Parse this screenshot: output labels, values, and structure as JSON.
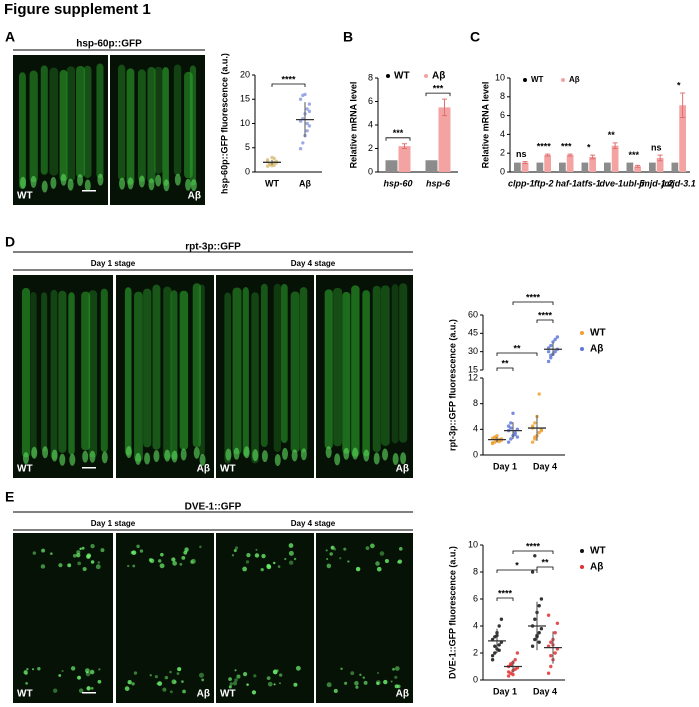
{
  "figure_title": "Figure supplement 1",
  "panel_labels": [
    "A",
    "B",
    "C",
    "D",
    "E"
  ],
  "images": {
    "A": {
      "title": "hsp-60p::GFP",
      "labels": [
        "WT",
        "Aβ"
      ]
    },
    "D": {
      "title": "rpt-3p::GFP",
      "stages": [
        "Day 1 stage",
        "Day 4  stage"
      ],
      "labels": [
        "WT",
        "Aβ",
        "WT",
        "Aβ"
      ]
    },
    "E": {
      "title": "DVE-1::GFP",
      "stages": [
        "Day 1 stage",
        "Day 4  stage"
      ],
      "labels": [
        "WT",
        "Aβ",
        "WT",
        "Aβ"
      ]
    }
  },
  "chart_data": [
    {
      "type": "dot",
      "ylabel": "hsp-60p::GFP fluorescence (a.u.)",
      "categories": [
        "WT",
        "Aβ"
      ],
      "colors": [
        "#d9bf7a",
        "#8d9de0"
      ],
      "values": [
        2.0,
        10.8
      ],
      "errors": [
        0.5,
        3.6
      ],
      "points": [
        [
          1.2,
          1.5,
          1.8,
          2.0,
          2.2,
          2.5,
          1.7,
          1.3,
          2.8,
          1.9,
          2.1,
          1.6,
          3.0,
          1.4
        ],
        [
          4.8,
          6.0,
          7.5,
          8.5,
          9.5,
          10.5,
          11,
          12,
          13,
          14,
          15,
          15.8,
          16,
          10,
          12.5
        ]
      ],
      "ylim": [
        0,
        20
      ],
      "yticks": [
        0,
        5,
        10,
        15,
        20
      ],
      "annotations": [
        "****"
      ]
    },
    {
      "type": "bar",
      "ylabel": "Relative mRNA level",
      "categories": [
        "hsp-60",
        "hsp-6"
      ],
      "series": [
        {
          "name": "WT",
          "color": "#8c8c8c",
          "values": [
            1,
            1
          ]
        },
        {
          "name": "Aβ",
          "color": "#f4a3a3",
          "values": [
            2.2,
            5.5
          ],
          "errors": [
            0.2,
            0.7
          ]
        }
      ],
      "significance": [
        "***",
        "***"
      ],
      "ylim": [
        0,
        8
      ],
      "yticks": [
        0,
        2,
        4,
        6,
        8
      ]
    },
    {
      "type": "bar",
      "ylabel": "Relative mRNA level",
      "categories": [
        "clpp-1",
        "ftp-2",
        "haf-1",
        "atfs-1",
        "dve-1",
        "ubl-5",
        "jmjd-1.2",
        "jmjd-3.1"
      ],
      "series": [
        {
          "name": "WT",
          "color": "#8c8c8c",
          "values": [
            1,
            1,
            1,
            1,
            1,
            1,
            1,
            1
          ]
        },
        {
          "name": "Aβ",
          "color": "#f4a3a3",
          "values": [
            1.0,
            1.8,
            1.8,
            1.6,
            2.8,
            0.6,
            1.5,
            7.1
          ],
          "errors": [
            0.1,
            0.1,
            0.1,
            0.2,
            0.3,
            0.1,
            0.3,
            1.3
          ]
        }
      ],
      "significance": [
        "ns",
        "****",
        "***",
        "*",
        "**",
        "***",
        "ns",
        "*"
      ],
      "ylim": [
        0,
        10
      ],
      "yticks": [
        0,
        2,
        4,
        6,
        8,
        10
      ]
    },
    {
      "type": "dot",
      "ylabel": "rpt-3p::GFP fluorescence (a.u.)",
      "categories": [
        "Day 1",
        "Day 4"
      ],
      "series": [
        {
          "name": "WT",
          "color": "#f0a030",
          "values": [
            2.4,
            4.2
          ],
          "errors": [
            0.4,
            2.0
          ],
          "points": [
            [
              1.8,
              2,
              2.2,
              2.4,
              2.5,
              2.6,
              2.8,
              3,
              2.1,
              2.3,
              1.9,
              2.7
            ],
            [
              2,
              2.5,
              3,
              3.5,
              4,
              4.5,
              5,
              6,
              9.5,
              3.8,
              4.2,
              2.8
            ]
          ]
        },
        {
          "name": "Aβ",
          "color": "#5f78d8",
          "values": [
            3.8,
            32
          ],
          "errors": [
            1.3,
            5.5
          ],
          "points": [
            [
              2,
              2.5,
              3,
              3.5,
              4,
              4.5,
              5,
              6.5,
              3.2,
              2.8,
              3.8,
              4.2
            ],
            [
              22,
              25,
              28,
              30,
              32,
              33,
              35,
              38,
              40,
              42,
              30,
              27
            ]
          ]
        }
      ],
      "segments": [
        {
          "ylim": [
            0,
            12
          ],
          "yticks": [
            0,
            4,
            8,
            12
          ]
        },
        {
          "ylim": [
            15,
            60
          ],
          "yticks": [
            15,
            30,
            45,
            60
          ]
        }
      ],
      "annotations": [
        "**",
        "**",
        "****",
        "****"
      ]
    },
    {
      "type": "dot",
      "ylabel": "DVE-1::GFP fluorescence (a.u.)",
      "categories": [
        "Day 1",
        "Day 4"
      ],
      "series": [
        {
          "name": "WT",
          "color": "#111111",
          "values": [
            2.9,
            4.0
          ],
          "errors": [
            0.9,
            1.8
          ],
          "points": [
            [
              1.5,
              2,
              2.3,
              2.6,
              2.8,
              3,
              3.2,
              3.5,
              4,
              4.5,
              1.8,
              2.5,
              3.3,
              2.2
            ],
            [
              2.5,
              3,
              3.2,
              3.5,
              3.8,
              4,
              4.5,
              5,
              5.5,
              6,
              8,
              9.2,
              3.3,
              2.8
            ]
          ]
        },
        {
          "name": "Aβ",
          "color": "#e03030",
          "values": [
            1.0,
            2.4
          ],
          "errors": [
            0.45,
            1.2
          ],
          "points": [
            [
              0.3,
              0.5,
              0.7,
              0.8,
              0.9,
              1,
              1.1,
              1.3,
              1.5,
              2,
              0.6,
              1.2,
              0.4
            ],
            [
              0.5,
              1,
              1.5,
              2,
              2.3,
              2.5,
              2.8,
              3,
              3.5,
              4.2,
              4.8,
              1.8,
              2.6
            ]
          ]
        }
      ],
      "ylim": [
        0,
        10
      ],
      "yticks": [
        0,
        2,
        4,
        6,
        8,
        10
      ],
      "annotations": [
        "****",
        "*",
        "****",
        "**"
      ]
    }
  ]
}
